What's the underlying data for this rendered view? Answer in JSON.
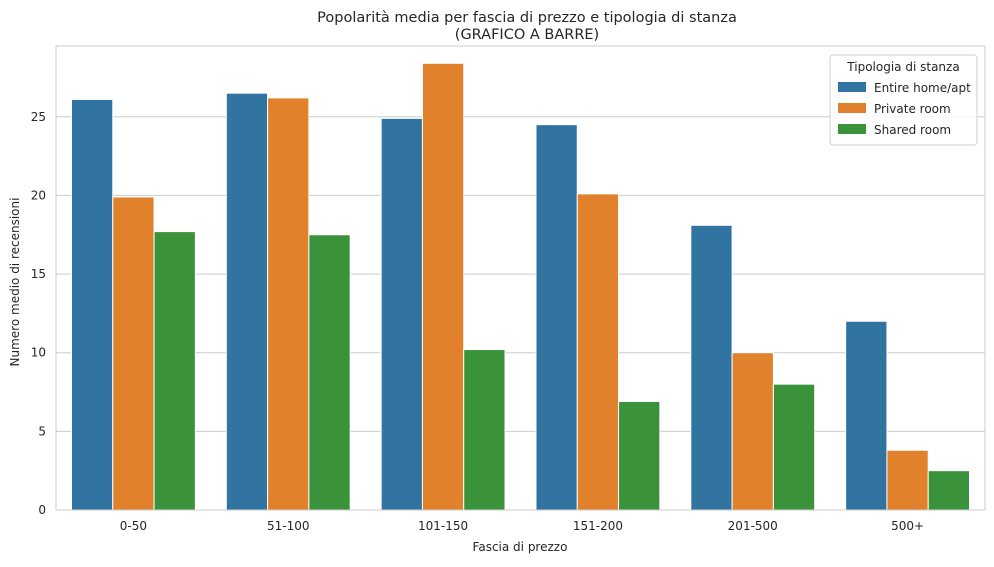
{
  "chart_data": {
    "type": "bar",
    "title": "Popolarità media per fascia di prezzo e tipologia di stanza",
    "subtitle": "(GRAFICO A BARRE)",
    "xlabel": "Fascia di prezzo",
    "ylabel": "Numero medio di recensioni",
    "categories": [
      "0-50",
      "51-100",
      "101-150",
      "151-200",
      "201-500",
      "500+"
    ],
    "ylim": [
      0,
      29.5
    ],
    "yticks": [
      0,
      5,
      10,
      15,
      20,
      25
    ],
    "grid": true,
    "legend": {
      "title": "Tipologia di stanza",
      "placement": "top-right"
    },
    "series": [
      {
        "name": "Entire home/apt",
        "color": "#3274a1",
        "values": [
          26.1,
          26.5,
          24.9,
          24.5,
          18.1,
          12.0
        ]
      },
      {
        "name": "Private room",
        "color": "#e1812c",
        "values": [
          19.9,
          26.2,
          28.4,
          20.1,
          10.0,
          3.8
        ]
      },
      {
        "name": "Shared room",
        "color": "#3a923a",
        "values": [
          17.7,
          17.5,
          10.2,
          6.9,
          8.0,
          2.5
        ]
      }
    ]
  }
}
